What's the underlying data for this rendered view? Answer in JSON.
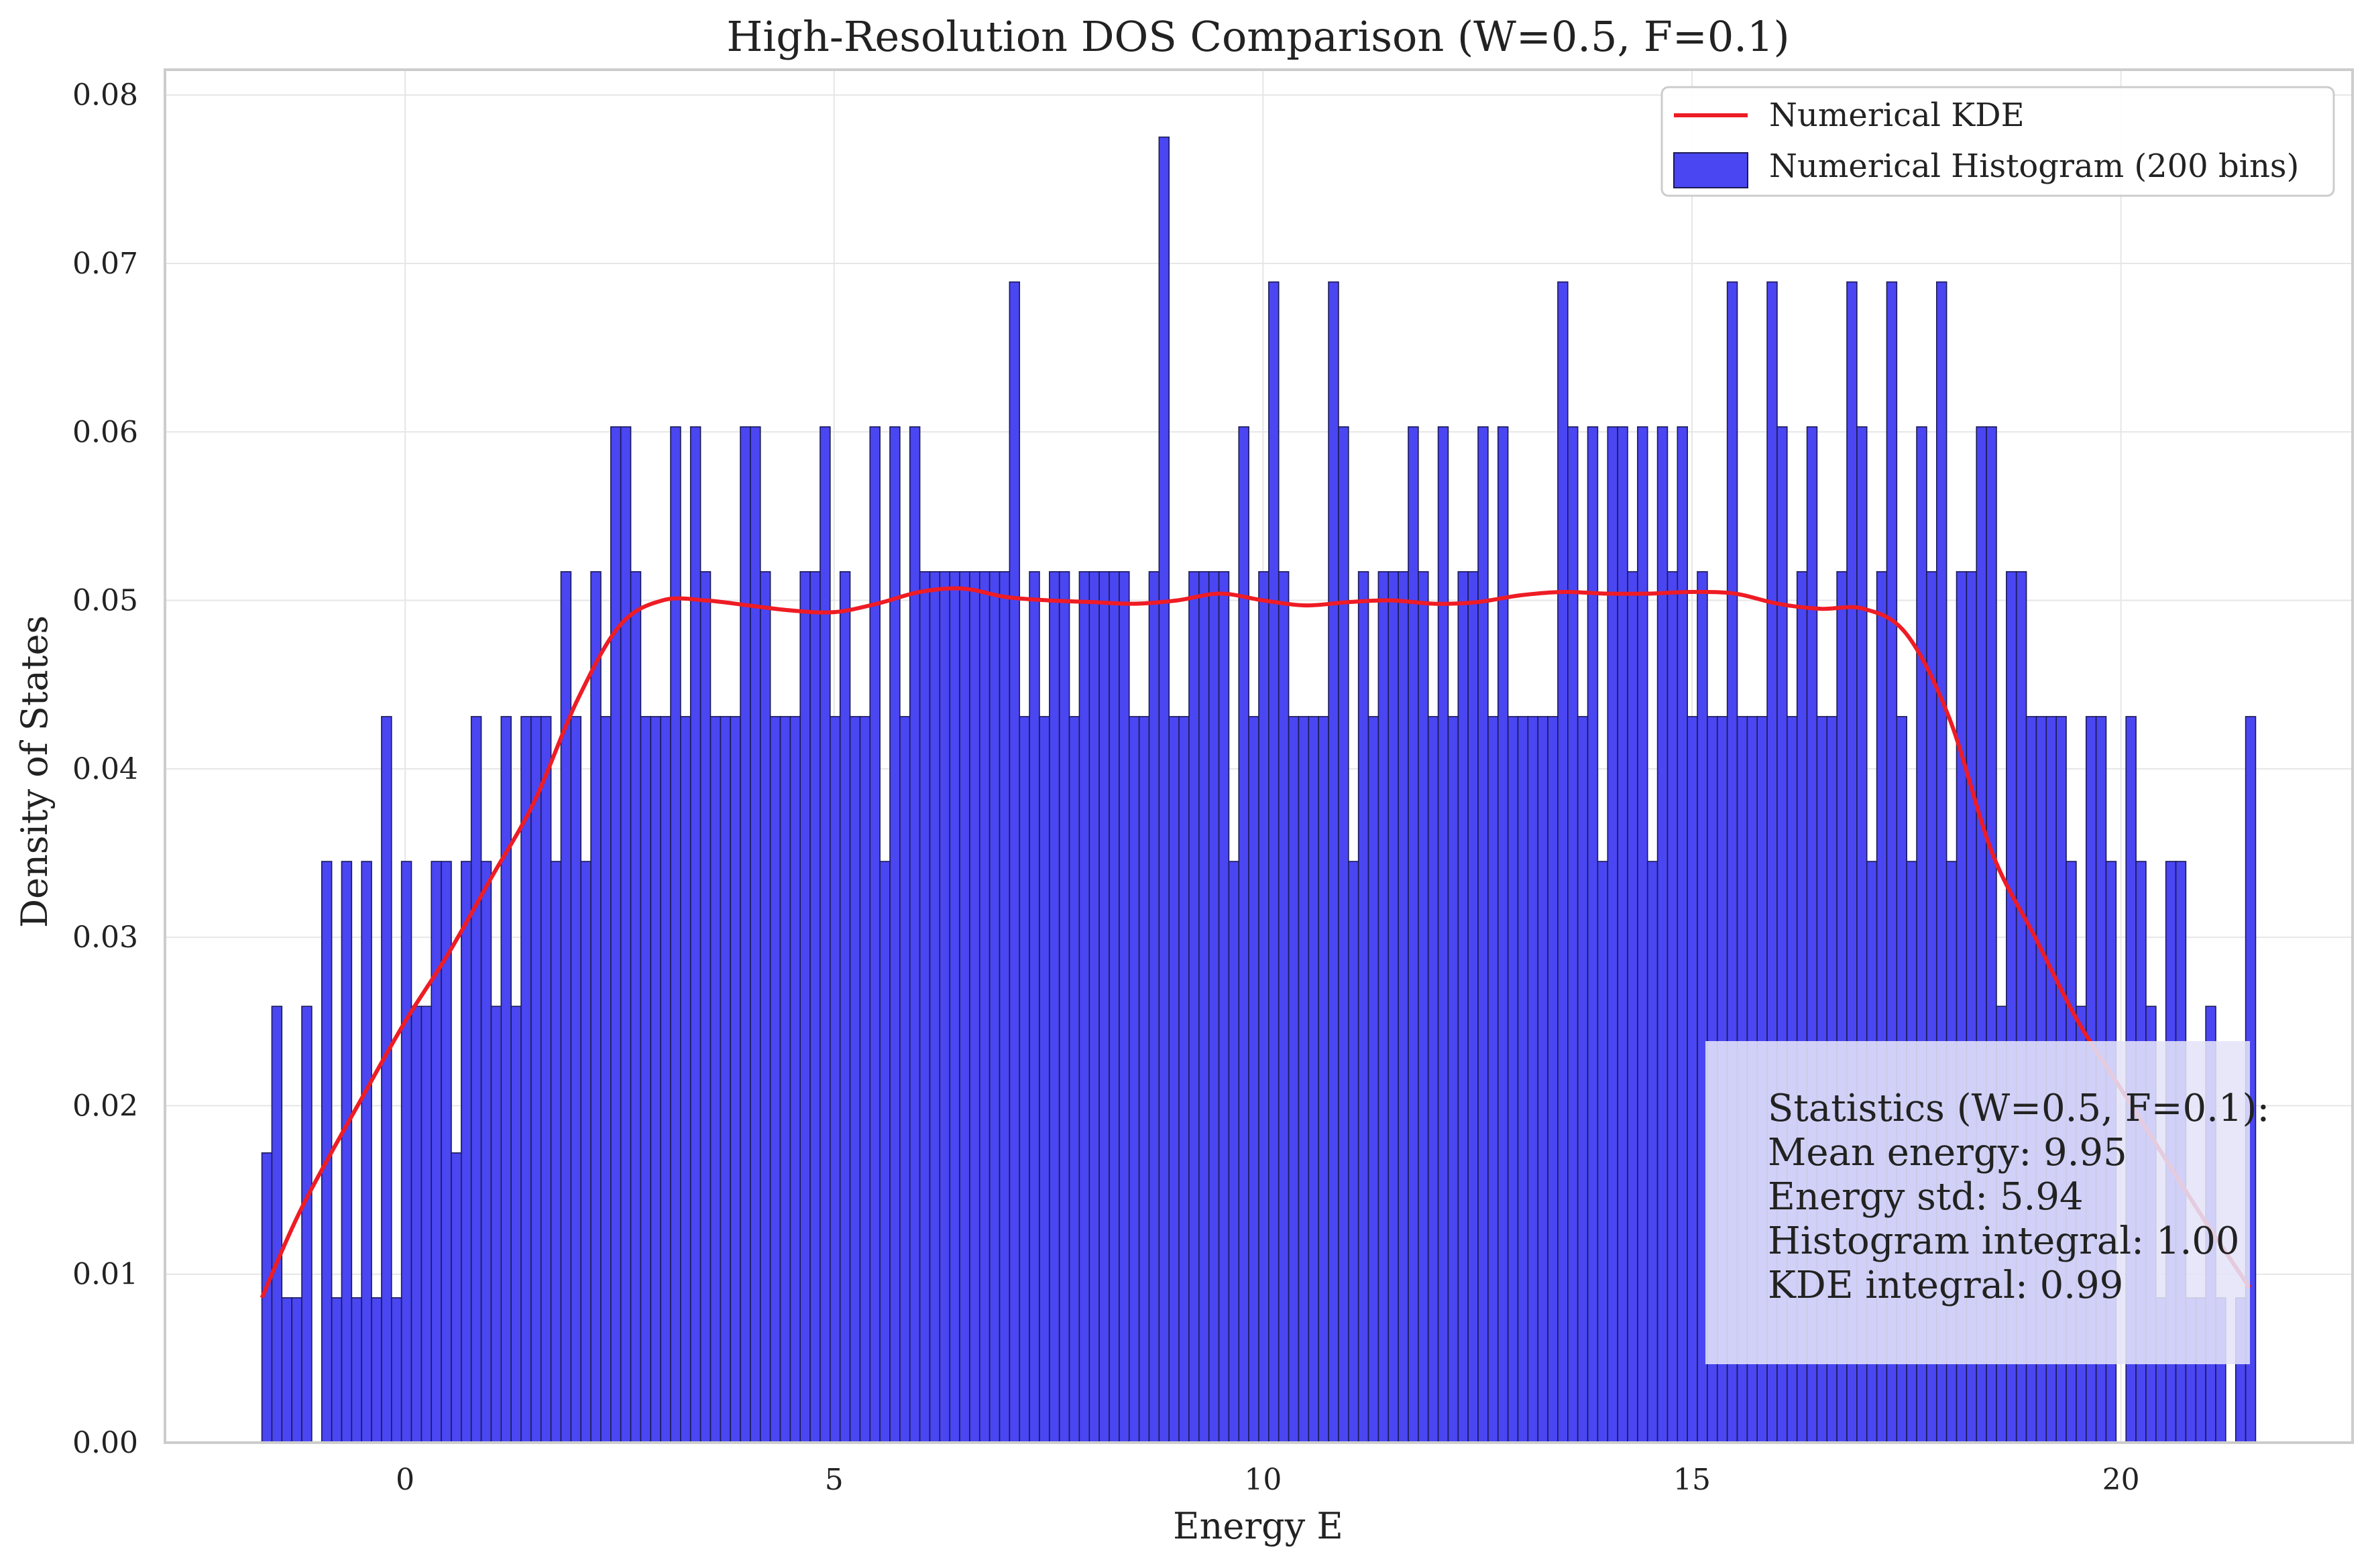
{
  "chart_data": {
    "type": "bar",
    "title": "High-Resolution DOS Comparison (W=0.5, F=0.1)",
    "xlabel": "Energy E",
    "ylabel": "Density of States",
    "xlim": [
      -2.8,
      22.7
    ],
    "ylim": [
      0,
      0.0815
    ],
    "xticks": [
      0,
      5,
      10,
      15,
      20
    ],
    "yticks": [
      0.0,
      0.01,
      0.02,
      0.03,
      0.04,
      0.05,
      0.06,
      0.07,
      0.08
    ],
    "grid": true,
    "colors": {
      "bars": "#4a46f2",
      "bar_edge": "#1a1a55",
      "kde": "#ee1c25",
      "grid": "#e6e6e6"
    },
    "legend": {
      "position": "top-right",
      "entries": [
        {
          "label": "Numerical KDE",
          "kind": "line",
          "color": "#ee1c25"
        },
        {
          "label": "Numerical Histogram (200 bins)",
          "kind": "patch",
          "color": "#4a46f2"
        }
      ]
    },
    "histogram": {
      "name": "Numerical Histogram (200 bins)",
      "bin_start": -1.67,
      "bin_width": 0.1162,
      "values": [
        0.0172,
        0.0259,
        0.0086,
        0.0086,
        0.0259,
        0.0,
        0.0345,
        0.0086,
        0.0345,
        0.0086,
        0.0345,
        0.0086,
        0.0431,
        0.0086,
        0.0345,
        0.0259,
        0.0259,
        0.0345,
        0.0345,
        0.0172,
        0.0345,
        0.0431,
        0.0345,
        0.0259,
        0.0431,
        0.0259,
        0.0431,
        0.0431,
        0.0431,
        0.0345,
        0.0517,
        0.0431,
        0.0345,
        0.0517,
        0.0431,
        0.0603,
        0.0603,
        0.0517,
        0.0431,
        0.0431,
        0.0431,
        0.0603,
        0.0431,
        0.0603,
        0.0517,
        0.0431,
        0.0431,
        0.0431,
        0.0603,
        0.0603,
        0.0517,
        0.0431,
        0.0431,
        0.0431,
        0.0517,
        0.0517,
        0.0603,
        0.0431,
        0.0517,
        0.0431,
        0.0431,
        0.0603,
        0.0345,
        0.0603,
        0.0431,
        0.0603,
        0.0517,
        0.0517,
        0.0517,
        0.0517,
        0.0517,
        0.0517,
        0.0517,
        0.0517,
        0.0517,
        0.0689,
        0.0431,
        0.0517,
        0.0431,
        0.0517,
        0.0517,
        0.0431,
        0.0517,
        0.0517,
        0.0517,
        0.0517,
        0.0517,
        0.0431,
        0.0431,
        0.0517,
        0.0775,
        0.0431,
        0.0431,
        0.0517,
        0.0517,
        0.0517,
        0.0517,
        0.0345,
        0.0603,
        0.0431,
        0.0517,
        0.0689,
        0.0517,
        0.0431,
        0.0431,
        0.0431,
        0.0431,
        0.0689,
        0.0603,
        0.0345,
        0.0517,
        0.0431,
        0.0517,
        0.0517,
        0.0517,
        0.0603,
        0.0517,
        0.0431,
        0.0603,
        0.0431,
        0.0517,
        0.0517,
        0.0603,
        0.0431,
        0.0603,
        0.0431,
        0.0431,
        0.0431,
        0.0431,
        0.0431,
        0.0689,
        0.0603,
        0.0431,
        0.0603,
        0.0345,
        0.0603,
        0.0603,
        0.0517,
        0.0603,
        0.0345,
        0.0603,
        0.0517,
        0.0603,
        0.0431,
        0.0517,
        0.0431,
        0.0431,
        0.0689,
        0.0431,
        0.0431,
        0.0431,
        0.0689,
        0.0603,
        0.0431,
        0.0517,
        0.0603,
        0.0431,
        0.0431,
        0.0517,
        0.0689,
        0.0603,
        0.0345,
        0.0517,
        0.0689,
        0.0431,
        0.0345,
        0.0603,
        0.0517,
        0.0689,
        0.0345,
        0.0517,
        0.0517,
        0.0603,
        0.0603,
        0.0259,
        0.0517,
        0.0517,
        0.0431,
        0.0431,
        0.0431,
        0.0431,
        0.0345,
        0.0259,
        0.0431,
        0.0431,
        0.0345,
        0.0,
        0.0431,
        0.0345,
        0.0259,
        0.0086,
        0.0345,
        0.0345,
        0.0086,
        0.0086,
        0.0259,
        0.0086,
        0.0,
        0.0086,
        0.0431
      ]
    },
    "series": [
      {
        "name": "Numerical KDE",
        "x": [
          -1.67,
          -1.2,
          -0.5,
          0.0,
          0.5,
          1.0,
          1.5,
          2.0,
          2.5,
          3.0,
          3.5,
          4.0,
          4.5,
          5.0,
          5.5,
          6.0,
          6.5,
          7.0,
          7.5,
          8.0,
          8.5,
          9.0,
          9.5,
          10.0,
          10.5,
          11.0,
          11.5,
          12.0,
          12.5,
          13.0,
          13.5,
          14.0,
          14.5,
          15.0,
          15.5,
          16.0,
          16.5,
          17.0,
          17.5,
          18.0,
          18.5,
          19.0,
          19.5,
          20.0,
          20.5,
          21.0,
          21.5
        ],
        "y": [
          0.0086,
          0.014,
          0.0205,
          0.025,
          0.029,
          0.0335,
          0.038,
          0.044,
          0.0485,
          0.05,
          0.05,
          0.0497,
          0.0494,
          0.0493,
          0.0498,
          0.0505,
          0.0507,
          0.0502,
          0.05,
          0.0499,
          0.0498,
          0.05,
          0.0504,
          0.05,
          0.0497,
          0.0499,
          0.05,
          0.0498,
          0.0499,
          0.0503,
          0.0505,
          0.0504,
          0.0504,
          0.0505,
          0.0504,
          0.0498,
          0.0495,
          0.0495,
          0.048,
          0.043,
          0.035,
          0.03,
          0.025,
          0.021,
          0.017,
          0.013,
          0.0092
        ]
      }
    ],
    "annotation": {
      "lines": [
        "Statistics (W=0.5, F=0.1):",
        "Mean energy: 9.95",
        "Energy std: 5.94",
        "Histogram integral: 1.00",
        "KDE integral: 0.99"
      ],
      "position": "bottom-right"
    }
  }
}
